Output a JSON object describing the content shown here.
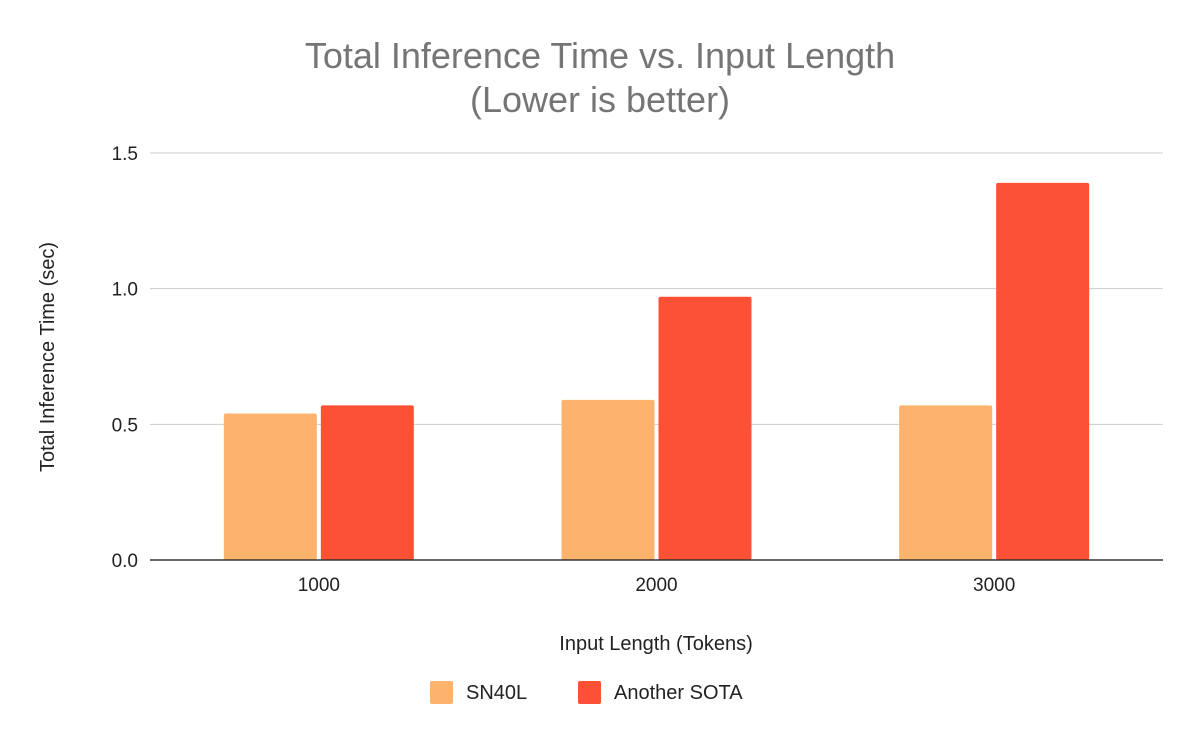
{
  "chart_data": {
    "type": "bar",
    "title": "Total Inference Time vs. Input Length",
    "subtitle": "(Lower is better)",
    "xlabel": "Input Length (Tokens)",
    "ylabel": "Total Inference Time (sec)",
    "categories": [
      "1000",
      "2000",
      "3000"
    ],
    "series": [
      {
        "name": "SN40L",
        "color": "#fdb36b",
        "values": [
          0.54,
          0.59,
          0.57
        ]
      },
      {
        "name": "Another SOTA",
        "color": "#fb5235",
        "values": [
          0.57,
          0.97,
          1.39
        ]
      }
    ],
    "ylim": [
      0,
      1.5
    ],
    "yticks": [
      "0.0",
      "0.5",
      "1.0",
      "1.5"
    ],
    "ytick_values": [
      0,
      0.5,
      1.0,
      1.5
    ],
    "grid": true,
    "legend_position": "bottom"
  }
}
